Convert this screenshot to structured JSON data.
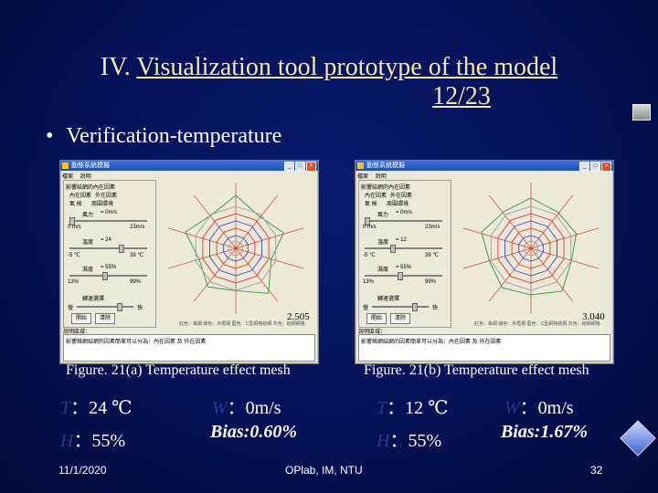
{
  "slide": {
    "title_prefix": "IV. ",
    "title_main": "Visualization tool prototype of the model",
    "title_num": "12/23",
    "bullet": "Verification-temperature",
    "captions": [
      "Figure. 21(a) Temperature effect mesh",
      "Figure. 21(b) Temperature effect mesh"
    ],
    "left_params": {
      "temp": "：24 ℃",
      "humidity": "：55%",
      "wind": "：0m/s",
      "bias": "Bias:0.60%"
    },
    "right_params": {
      "temp": "：12 ℃",
      "humidity": "：55%",
      "wind": "：0m/s",
      "bias": "Bias:1.67%"
    },
    "footer": {
      "date": "11/1/2020",
      "org": "OPlab, IM, NTU",
      "page": "32"
    }
  },
  "windows": [
    {
      "title": "動態系統模擬",
      "menu": [
        "檔案",
        "說明"
      ],
      "group": "影響結網的內在因素",
      "tabs": [
        "內在因素",
        "外在因素"
      ],
      "subtabs": [
        "氣   候",
        "周圍環境"
      ],
      "wind_label": "風力",
      "wind_val": "= 0m/s",
      "wind_min": "0 m/s",
      "wind_max": "23m/s",
      "temp_label": "溫度",
      "temp_val": "= 24",
      "temp_min": "-5 ℃",
      "temp_max": "39 ℃",
      "hum_label": "濕度",
      "hum_val": "= 55%",
      "hum_min": "13%",
      "hum_max": "99%",
      "speed_label": "轉速選擇",
      "slow": "慢",
      "fast": "快",
      "start": "開始",
      "clear": "清除",
      "bias_value": "2.505",
      "legend": "紅色：蛛網   綠色：外框網   藍色：C型網格結網   灰色：結網網格",
      "desc_label": "說明區域：",
      "desc_text": "影響蛛網結網的因素簡單可以分為：內在因素 及 外在因素"
    },
    {
      "title": "動態系統模擬",
      "menu": [
        "檔案",
        "說明"
      ],
      "group": "影響結網的內在因素",
      "tabs": [
        "內在因素",
        "外在因素"
      ],
      "subtabs": [
        "氣   候",
        "周圍環境"
      ],
      "wind_label": "風力",
      "wind_val": "= 0m/s",
      "wind_min": "0 m/s",
      "wind_max": "23m/s",
      "temp_label": "溫度",
      "temp_val": "= 12",
      "temp_min": "-5 ℃",
      "temp_max": "39 ℃",
      "hum_label": "濕度",
      "hum_val": "= 55%",
      "hum_min": "13%",
      "hum_max": "99%",
      "speed_label": "轉速選擇",
      "slow": "慢",
      "fast": "快",
      "start": "開始",
      "clear": "清除",
      "bias_value": "3.040",
      "legend": "紅色：蛛網   綠色：外框網   藍色：C型網格結網   灰色：結網網格",
      "desc_label": "說明區域：",
      "desc_text": "影響蛛網結網的因素簡單可以分為：內在因素 及 外在因素"
    }
  ],
  "colors": {
    "title": "#f4e7a8",
    "background": "#061257",
    "web_red": "#d83a2a",
    "web_green": "#2a9a3a",
    "web_blue": "#3a4ad8",
    "web_grey": "#a0a0a0"
  }
}
